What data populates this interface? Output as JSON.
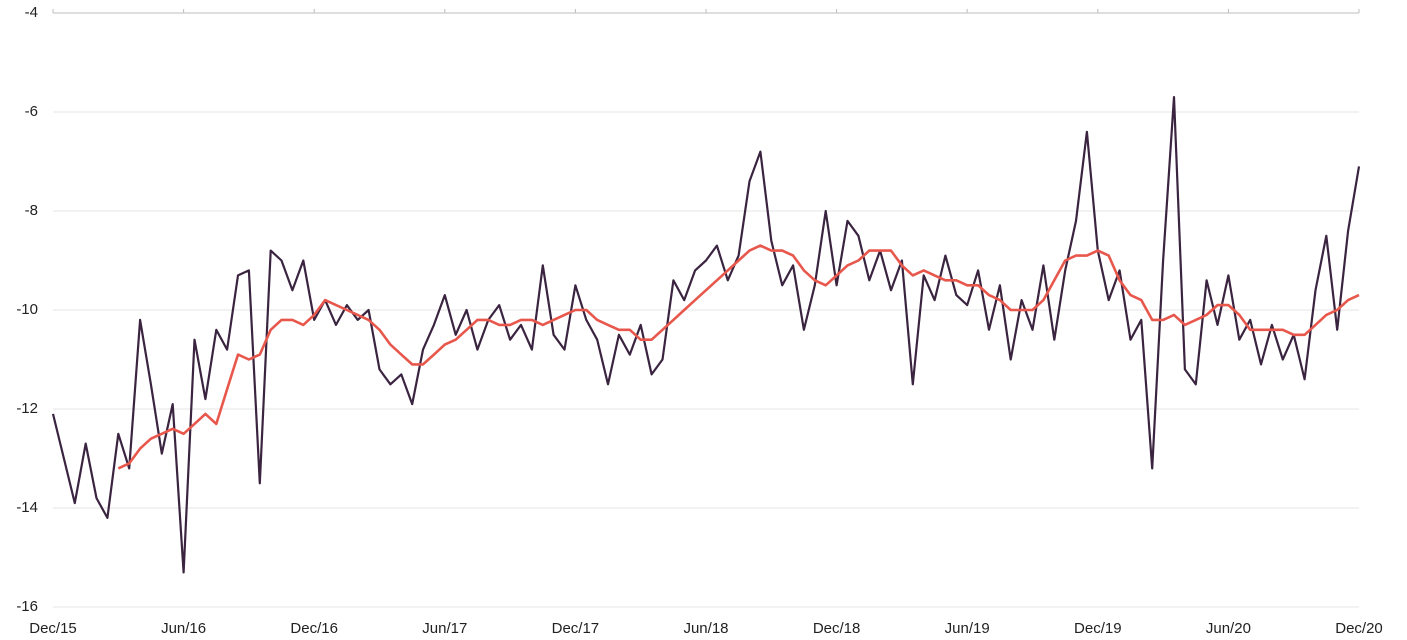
{
  "chart_data": {
    "type": "line",
    "categories": [
      "Dec/15",
      null,
      null,
      null,
      null,
      null,
      null,
      null,
      null,
      null,
      null,
      null,
      "Jun/16",
      null,
      null,
      null,
      null,
      null,
      null,
      null,
      null,
      null,
      null,
      null,
      "Dec/16",
      null,
      null,
      null,
      null,
      null,
      null,
      null,
      null,
      null,
      null,
      null,
      "Jun/17",
      null,
      null,
      null,
      null,
      null,
      null,
      null,
      null,
      null,
      null,
      null,
      "Dec/17",
      null,
      null,
      null,
      null,
      null,
      null,
      null,
      null,
      null,
      null,
      null,
      "Jun/18",
      null,
      null,
      null,
      null,
      null,
      null,
      null,
      null,
      null,
      null,
      null,
      "Dec/18",
      null,
      null,
      null,
      null,
      null,
      null,
      null,
      null,
      null,
      null,
      null,
      "Jun/19",
      null,
      null,
      null,
      null,
      null,
      null,
      null,
      null,
      null,
      null,
      null,
      "Dec/19",
      null,
      null,
      null,
      null,
      null,
      null,
      null,
      null,
      null,
      null,
      null,
      "Jun/20",
      null,
      null,
      null,
      null,
      null,
      null,
      null,
      null,
      null,
      null,
      null,
      "Dec/20"
    ],
    "series": [
      {
        "color": "#3a2440",
        "values": [
          -12.1,
          -13.0,
          -13.9,
          -12.7,
          -13.8,
          -14.2,
          -12.5,
          -13.2,
          -10.2,
          -11.5,
          -12.9,
          -11.9,
          -15.3,
          -10.6,
          -11.8,
          -10.4,
          -10.8,
          -9.3,
          -9.2,
          -13.5,
          -8.8,
          -9.0,
          -9.6,
          -9.0,
          -10.2,
          -9.8,
          -10.3,
          -9.9,
          -10.2,
          -10.0,
          -11.2,
          -11.5,
          -11.3,
          -11.9,
          -10.8,
          -10.3,
          -9.7,
          -10.5,
          -10.0,
          -10.8,
          -10.2,
          -9.9,
          -10.6,
          -10.3,
          -10.8,
          -9.1,
          -10.5,
          -10.8,
          -9.5,
          -10.2,
          -10.6,
          -11.5,
          -10.5,
          -10.9,
          -10.3,
          -11.3,
          -11.0,
          -9.4,
          -9.8,
          -9.2,
          -9.0,
          -8.7,
          -9.4,
          -8.9,
          -7.4,
          -6.8,
          -8.6,
          -9.5,
          -9.1,
          -10.4,
          -9.5,
          -8.0,
          -9.5,
          -8.2,
          -8.5,
          -9.4,
          -8.8,
          -9.6,
          -9.0,
          -11.5,
          -9.3,
          -9.8,
          -8.9,
          -9.7,
          -9.9,
          -9.2,
          -10.4,
          -9.5,
          -11.0,
          -9.8,
          -10.4,
          -9.1,
          -10.6,
          -9.2,
          -8.2,
          -6.4,
          -8.8,
          -9.8,
          -9.2,
          -10.6,
          -10.2,
          -13.2,
          -9.0,
          -5.7,
          -11.2,
          -11.5,
          -9.4,
          -10.3,
          -9.3,
          -10.6,
          -10.2,
          -11.1,
          -10.3,
          -11.0,
          -10.5,
          -11.4,
          -9.6,
          -8.5,
          -10.4,
          -8.4,
          -7.1
        ]
      },
      {
        "color": "#e8574c",
        "values": [
          null,
          null,
          null,
          null,
          null,
          null,
          -13.2,
          -13.1,
          -12.8,
          -12.6,
          -12.5,
          -12.4,
          -12.5,
          -12.3,
          -12.1,
          -12.3,
          -11.6,
          -10.9,
          -11.0,
          -10.9,
          -10.4,
          -10.2,
          -10.2,
          -10.3,
          -10.1,
          -9.8,
          -9.9,
          -10.0,
          -10.1,
          -10.2,
          -10.4,
          -10.7,
          -10.9,
          -11.1,
          -11.1,
          -10.9,
          -10.7,
          -10.6,
          -10.4,
          -10.2,
          -10.2,
          -10.3,
          -10.3,
          -10.2,
          -10.2,
          -10.3,
          -10.2,
          -10.1,
          -10.0,
          -10.0,
          -10.2,
          -10.3,
          -10.4,
          -10.4,
          -10.6,
          -10.6,
          -10.4,
          -10.2,
          -10.0,
          -9.8,
          -9.6,
          -9.4,
          -9.2,
          -9.0,
          -8.8,
          -8.7,
          -8.8,
          -8.8,
          -8.9,
          -9.2,
          -9.4,
          -9.5,
          -9.3,
          -9.1,
          -9.0,
          -8.8,
          -8.8,
          -8.8,
          -9.1,
          -9.3,
          -9.2,
          -9.3,
          -9.4,
          -9.4,
          -9.5,
          -9.5,
          -9.7,
          -9.8,
          -10.0,
          -10.0,
          -10.0,
          -9.8,
          -9.4,
          -9.0,
          -8.9,
          -8.9,
          -8.8,
          -8.9,
          -9.4,
          -9.7,
          -9.8,
          -10.2,
          -10.2,
          -10.1,
          -10.3,
          -10.2,
          -10.1,
          -9.9,
          -9.9,
          -10.1,
          -10.4,
          -10.4,
          -10.4,
          -10.4,
          -10.5,
          -10.5,
          -10.3,
          -10.1,
          -10.0,
          -9.8,
          -9.7
        ]
      }
    ],
    "ylim": [
      -16,
      -4
    ],
    "yticks": [
      -16,
      -14,
      -12,
      -10,
      -8,
      -6,
      -4
    ],
    "grid": true
  }
}
